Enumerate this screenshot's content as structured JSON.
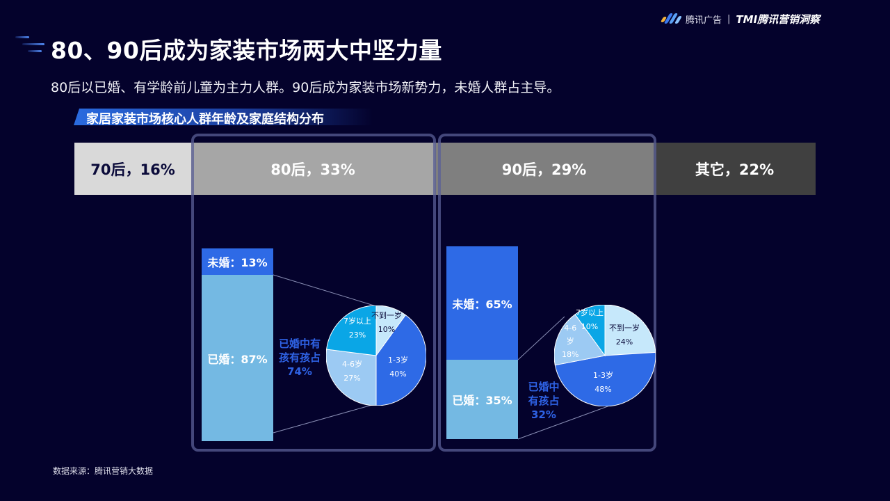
{
  "brand": {
    "name": "腾讯广告",
    "separator": "|",
    "product": "TMI腾讯营销洞察",
    "logo_colors": [
      "#f2b33d",
      "#3d7bf0",
      "#5aa0f5",
      "#8ac2ff"
    ]
  },
  "header": {
    "title": "80、90后成为家装市场两大中坚力量",
    "subtitle": "80后以已婚、有学龄前儿童为主力人群。90后成为家装市场新势力，未婚人群占主导。",
    "section_tag": "家居家装市场核心人群年龄及家庭结构分布"
  },
  "colors": {
    "background": "#04022c",
    "unmarried": "#2e6ae6",
    "married": "#74b9e3",
    "note_text": "#2f63e6",
    "frame_border": "#4a4f86",
    "pie_under1": "#c6e8fb",
    "pie_1to3": "#2e6ae6",
    "pie_4to6": "#9ccaf3",
    "pie_7plus": "#0aa6e6"
  },
  "age_bar": [
    {
      "label": "70后，16%",
      "color": "#d9d9d9",
      "text_color": "#0b0b3a"
    },
    {
      "label": "80后，33%",
      "color": "#a6a6a6",
      "text_color": "#ffffff"
    },
    {
      "label": "90后，29%",
      "color": "#7f7f7f",
      "text_color": "#ffffff"
    },
    {
      "label": "其它，22%",
      "color": "#404040",
      "text_color": "#ffffff"
    }
  ],
  "group_80": {
    "unmarried_label": "未婚：13%",
    "married_label": "已婚：87%",
    "note": [
      "已婚中有",
      "孩有孩占",
      "74%"
    ],
    "pie": [
      {
        "name": "不到一岁",
        "pct": "10%"
      },
      {
        "name": "1-3岁",
        "pct": "40%"
      },
      {
        "name": "4-6岁",
        "pct": "27%"
      },
      {
        "name": "7岁以上",
        "pct": "23%"
      }
    ]
  },
  "group_90": {
    "unmarried_label": "未婚：65%",
    "married_label": "已婚：35%",
    "note": [
      "已婚中",
      "有孩占",
      "32%"
    ],
    "pie": [
      {
        "name": "不到一岁",
        "pct": "24%"
      },
      {
        "name": "1-3岁",
        "pct": "48%"
      },
      {
        "name": "4-6岁",
        "pct": "18%"
      },
      {
        "name": "7岁以上",
        "pct": "10%"
      }
    ],
    "pie_4to6_lines": [
      "4-6",
      "岁"
    ]
  },
  "footer": {
    "source": "数据来源：腾讯营销大数据"
  },
  "chart_data": [
    {
      "type": "bar",
      "title": "家居家装市场核心人群年龄及家庭结构分布",
      "subtitle": "年龄分布（100%堆叠横条）",
      "categories": [
        "70后",
        "80后",
        "90后",
        "其它"
      ],
      "values": [
        16,
        33,
        29,
        22
      ],
      "unit": "%",
      "orientation": "horizontal-stacked"
    },
    {
      "type": "bar",
      "title": "80后婚姻状况",
      "categories": [
        "未婚",
        "已婚"
      ],
      "values": [
        13,
        87
      ],
      "unit": "%",
      "orientation": "vertical-stacked",
      "annotation": "已婚中有孩有孩占74%"
    },
    {
      "type": "pie",
      "title": "80后已婚有孩家庭孩子年龄分布",
      "categories": [
        "不到一岁",
        "1-3岁",
        "4-6岁",
        "7岁以上"
      ],
      "values": [
        10,
        40,
        27,
        23
      ],
      "unit": "%"
    },
    {
      "type": "bar",
      "title": "90后婚姻状况",
      "categories": [
        "未婚",
        "已婚"
      ],
      "values": [
        65,
        35
      ],
      "unit": "%",
      "orientation": "vertical-stacked",
      "annotation": "已婚中有孩占32%"
    },
    {
      "type": "pie",
      "title": "90后已婚有孩家庭孩子年龄分布",
      "categories": [
        "不到一岁",
        "1-3岁",
        "4-6岁",
        "7岁以上"
      ],
      "values": [
        24,
        48,
        18,
        10
      ],
      "unit": "%"
    }
  ]
}
